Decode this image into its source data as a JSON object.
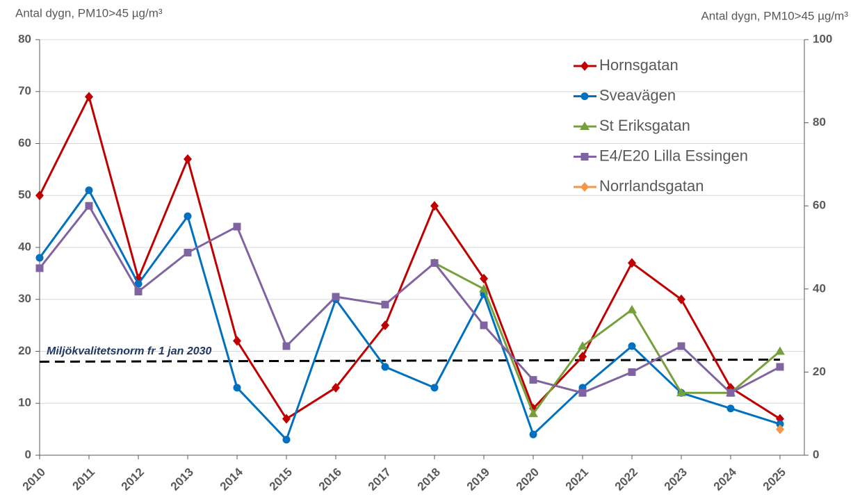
{
  "chart_data": {
    "type": "line",
    "ylabel": "Antal dygn, PM10>45 µg/m³",
    "y2label": "Antal dygn, PM10>45 µg/m³",
    "categories": [
      "2010",
      "2011",
      "2012",
      "2013",
      "2014",
      "2015",
      "2016",
      "2017",
      "2018",
      "2019",
      "2020",
      "2021",
      "2022",
      "2023",
      "2024",
      "2025"
    ],
    "series": [
      {
        "name": "Hornsgatan",
        "color": "#c00000",
        "marker": "diamond",
        "values": [
          50,
          69,
          34,
          57,
          22,
          7,
          13,
          25,
          48,
          34,
          9,
          19,
          37,
          30,
          13,
          7
        ]
      },
      {
        "name": "Sveavägen",
        "color": "#0070c0",
        "marker": "circle",
        "values": [
          38,
          51,
          33,
          46,
          13,
          3,
          30,
          17,
          13,
          31,
          4,
          13,
          21,
          12,
          9,
          6
        ]
      },
      {
        "name": "St Eriksgatan",
        "color": "#77a03c",
        "marker": "triangle",
        "values": [
          null,
          null,
          null,
          null,
          null,
          null,
          null,
          null,
          37,
          32,
          8,
          21,
          28,
          12,
          12,
          20
        ]
      },
      {
        "name": "E4/E20 Lilla Essingen",
        "color": "#8064a2",
        "marker": "square",
        "values": [
          36,
          48,
          31.5,
          39,
          44,
          21,
          30.5,
          29,
          37,
          25,
          14.5,
          12,
          16,
          21,
          12,
          17
        ]
      },
      {
        "name": "Norrlandsgatan",
        "color": "#f79646",
        "marker": "diamond",
        "values": [
          null,
          null,
          null,
          null,
          null,
          null,
          null,
          null,
          null,
          null,
          null,
          null,
          null,
          null,
          null,
          5
        ]
      }
    ],
    "norm": {
      "label": "Miljökvalitetsnorm fr 1 jan 2030",
      "values": [
        18,
        18.4
      ]
    },
    "ylim": [
      0,
      80
    ],
    "yticks": [
      0,
      10,
      20,
      30,
      40,
      50,
      60,
      70,
      80
    ],
    "y2lim": [
      0,
      100
    ],
    "y2ticks": [
      0,
      20,
      40,
      60,
      80,
      100
    ],
    "grid": true,
    "legend": "upper right"
  }
}
